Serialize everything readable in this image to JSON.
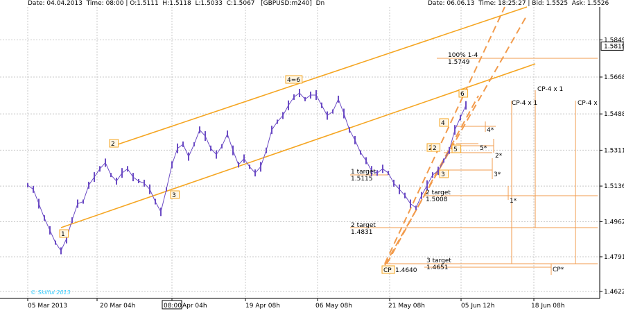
{
  "header": {
    "left": "Date: 04.04.2013  Time: 08:00 | O:1.5111  H:1.5118  L:1.5033  C:1.5067   [GBPUSD:m240]  Dn",
    "right": "Date: 06.06.13  Time: 18:25:27 | Bid: 1.5525  Ask: 1.5526"
  },
  "watermark": "© Skilful 2013",
  "cursor_time_label": "08:00",
  "chart_data": {
    "type": "line",
    "title": "",
    "symbol": "GBPUSD:m240",
    "xlabel": "",
    "ylabel": "",
    "x_tick_labels": [
      "05 Mar 2013",
      "20 Mar 04h",
      "Apr 04h",
      "19 Apr 08h",
      "06 May 08h",
      "21 May 08h",
      "05 Jun 12h",
      "18 Jun 08h"
    ],
    "y_tick_labels": [
      "1.5849",
      "1.5668",
      "1.5488",
      "1.5311",
      "1.5136",
      "1.4962",
      "1.4791",
      "1.4622"
    ],
    "y_tick_values": [
      1.5849,
      1.5668,
      1.5488,
      1.5311,
      1.5136,
      1.4962,
      1.4791,
      1.4622
    ],
    "current_price_label": "1.5819",
    "current_price": 1.5819,
    "ylim": [
      1.452,
      1.601
    ],
    "grid": true,
    "series": [
      {
        "values": [
          1.514,
          1.512,
          1.505,
          1.498,
          1.492,
          1.486,
          1.482,
          1.488,
          1.497,
          1.505,
          1.506,
          1.514,
          1.518,
          1.522,
          1.525,
          1.519,
          1.516,
          1.52,
          1.522,
          1.518,
          1.516,
          1.515,
          1.512,
          1.506,
          1.501,
          1.512,
          1.524,
          1.532,
          1.534,
          1.528,
          1.534,
          1.541,
          1.538,
          1.532,
          1.529,
          1.533,
          1.539,
          1.531,
          1.524,
          1.527,
          1.523,
          1.52,
          1.523,
          1.531,
          1.541,
          1.545,
          1.548,
          1.553,
          1.557,
          1.559,
          1.556,
          1.558,
          1.558,
          1.553,
          1.548,
          1.55,
          1.556,
          1.549,
          1.541,
          1.536,
          1.53,
          1.526,
          1.521,
          1.52,
          1.522,
          1.52,
          1.515,
          1.512,
          1.509,
          1.505,
          1.503,
          1.509,
          1.514,
          1.519,
          1.521,
          1.526,
          1.531,
          1.541,
          1.547,
          1.553
        ]
      }
    ],
    "wave_labels": [
      "1",
      "2",
      "3",
      "4=6",
      "2",
      "2",
      "3",
      "4",
      "5",
      "6"
    ],
    "target_labels": [
      {
        "name": "100% 1-4",
        "value": "1.5749"
      },
      {
        "name": "1 target",
        "value": "1.5115"
      },
      {
        "name": "2 target",
        "value": "1.5008"
      },
      {
        "name": "2 target",
        "value": "1.4831"
      },
      {
        "name": "3 target",
        "value": "1.4651"
      },
      {
        "name": "CP",
        "value": "1.4640"
      }
    ],
    "projection_labels": [
      "4*",
      "5*",
      "2*",
      "3*",
      "1*",
      "CP-4 x 1",
      "CP-4 x 1",
      "CP-4 x",
      "CP*"
    ]
  },
  "colors": {
    "price": "#6b4bc4",
    "channel": "#f5a623",
    "projection": "#f29b4c",
    "grid": "#c8c8c8",
    "watermark": "#33ccff"
  }
}
